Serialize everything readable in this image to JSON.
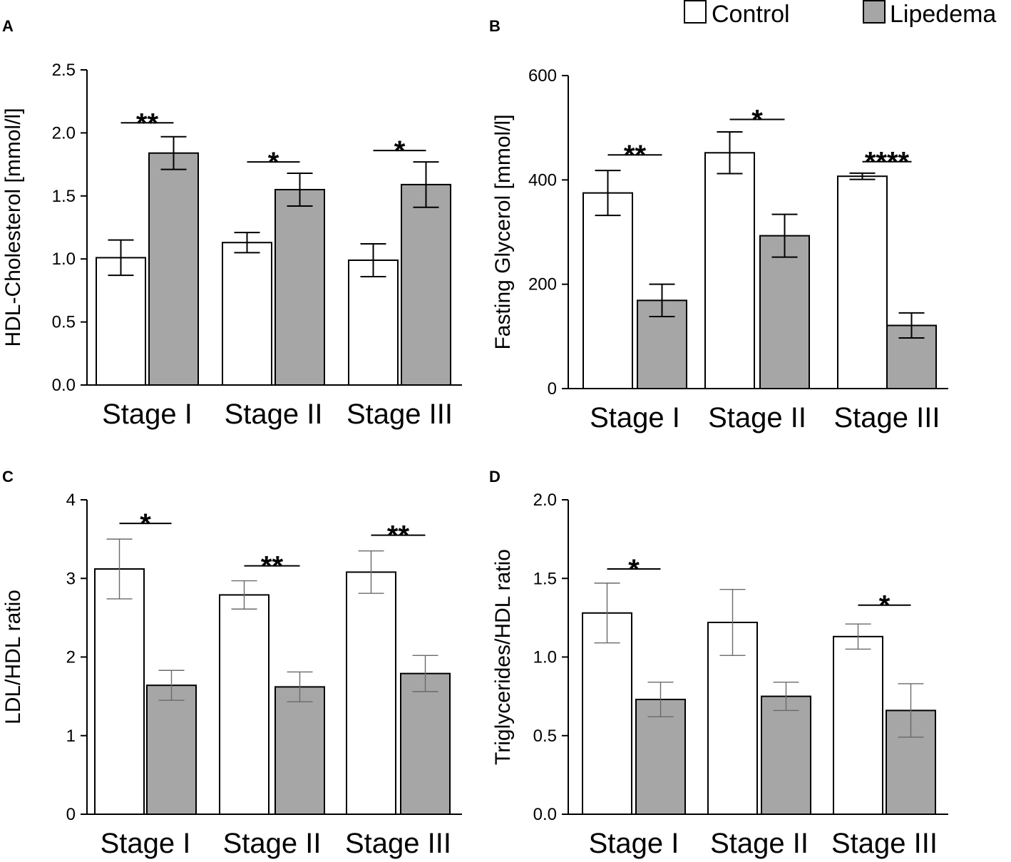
{
  "legend": {
    "items": [
      {
        "label": "Control",
        "color": "#ffffff"
      },
      {
        "label": "Lipedema",
        "color": "#a6a6a6"
      }
    ]
  },
  "chart_data": [
    {
      "panel": "A",
      "type": "bar",
      "ylabel": "HDL-Cholesterol [mmol/l]",
      "ylim": [
        0,
        2.5
      ],
      "yticks": [
        "0.0",
        "0.5",
        "1.0",
        "1.5",
        "2.0",
        "2.5"
      ],
      "categories": [
        "Stage I",
        "Stage II",
        "Stage III"
      ],
      "series": [
        {
          "name": "Control",
          "values": [
            1.01,
            1.13,
            0.99
          ],
          "errors": [
            0.14,
            0.08,
            0.13
          ]
        },
        {
          "name": "Lipedema",
          "values": [
            1.84,
            1.55,
            1.59
          ],
          "errors": [
            0.13,
            0.13,
            0.18
          ]
        }
      ],
      "significance": [
        "**",
        "*",
        "*"
      ],
      "sig_levels": [
        2.08,
        1.77,
        1.86
      ],
      "error_style": "dark"
    },
    {
      "panel": "B",
      "type": "bar",
      "ylabel": "Fasting Glycerol [mmol/l]",
      "ylim": [
        0,
        600
      ],
      "yticks": [
        "0",
        "200",
        "400",
        "600"
      ],
      "categories": [
        "Stage I",
        "Stage II",
        "Stage III"
      ],
      "series": [
        {
          "name": "Control",
          "values": [
            375,
            452,
            407
          ],
          "errors": [
            43,
            40,
            6
          ]
        },
        {
          "name": "Lipedema",
          "values": [
            169,
            293,
            121
          ],
          "errors": [
            31,
            41,
            24
          ]
        }
      ],
      "significance": [
        "**",
        "*",
        "****"
      ],
      "sig_levels": [
        448,
        516,
        435
      ],
      "error_style": "dark"
    },
    {
      "panel": "C",
      "type": "bar",
      "ylabel": "LDL/HDL ratio",
      "ylim": [
        0,
        4
      ],
      "yticks": [
        "0",
        "1",
        "2",
        "3",
        "4"
      ],
      "categories": [
        "Stage I",
        "Stage II",
        "Stage III"
      ],
      "series": [
        {
          "name": "Control",
          "values": [
            3.12,
            2.79,
            3.08
          ],
          "errors": [
            0.38,
            0.18,
            0.27
          ]
        },
        {
          "name": "Lipedema",
          "values": [
            1.64,
            1.62,
            1.79
          ],
          "errors": [
            0.19,
            0.19,
            0.23
          ]
        }
      ],
      "significance": [
        "*",
        "**",
        "**"
      ],
      "sig_levels": [
        3.7,
        3.16,
        3.55
      ],
      "error_style": "light"
    },
    {
      "panel": "D",
      "type": "bar",
      "ylabel": "Triglycerides/HDL ratio",
      "ylim": [
        0,
        2.0
      ],
      "yticks": [
        "0.0",
        "0.5",
        "1.0",
        "1.5",
        "2.0"
      ],
      "categories": [
        "Stage I",
        "Stage II",
        "Stage III"
      ],
      "series": [
        {
          "name": "Control",
          "values": [
            1.28,
            1.22,
            1.13
          ],
          "errors": [
            0.19,
            0.21,
            0.08
          ]
        },
        {
          "name": "Lipedema",
          "values": [
            0.73,
            0.75,
            0.66
          ],
          "errors": [
            0.11,
            0.09,
            0.17
          ]
        }
      ],
      "significance": [
        "*",
        "",
        "*"
      ],
      "sig_levels": [
        1.56,
        null,
        1.33
      ],
      "error_style": "light"
    }
  ]
}
